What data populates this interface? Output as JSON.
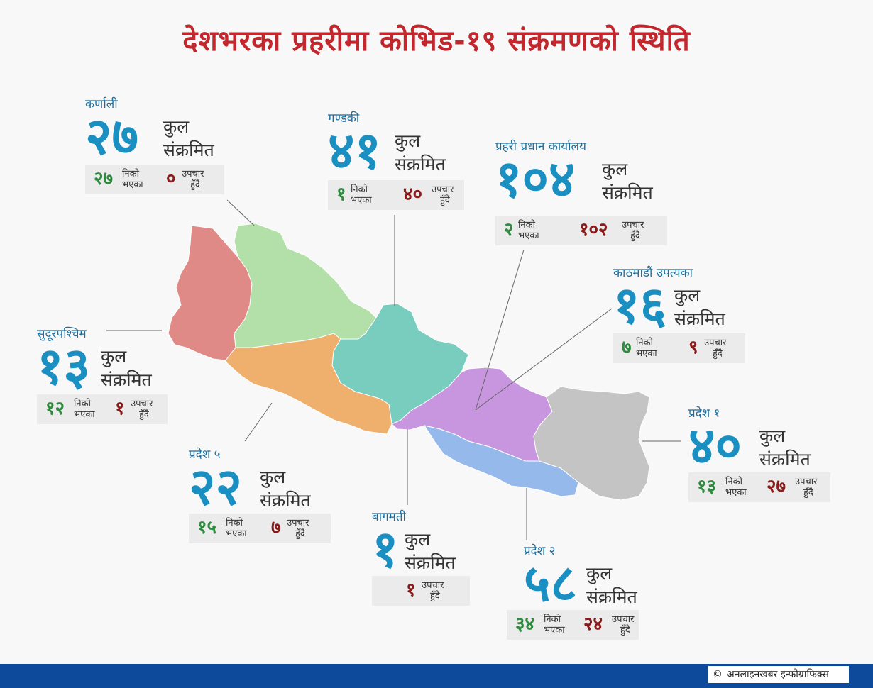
{
  "title": "देशभरका प्रहरीमा कोभिड-१९ संक्रमणको स्थिति",
  "total_word": "कुल",
  "infected_word": "संक्रमित",
  "recovered_line1": "निको",
  "recovered_line2": "भएका",
  "treatment_line1": "उपचार",
  "treatment_line2": "हुँदै",
  "regions": [
    {
      "key": "karnali",
      "name": "कर्णाली",
      "total": "२७",
      "recovered": "२७",
      "treatment": "०",
      "color": "#b3dfa8"
    },
    {
      "key": "gandaki",
      "name": "गण्डकी",
      "total": "४१",
      "recovered": "१",
      "treatment": "४०",
      "color": "#78cdbf"
    },
    {
      "key": "hq",
      "name": "प्रहरी प्रधान कार्यालय",
      "total": "१०४",
      "recovered": "२",
      "treatment": "१०२",
      "color": ""
    },
    {
      "key": "kathmandu",
      "name": "काठमाडौं उपत्यका",
      "total": "१६",
      "recovered": "७",
      "treatment": "९",
      "color": ""
    },
    {
      "key": "sudurpaschim",
      "name": "सुदूरपश्चिम",
      "total": "१३",
      "recovered": "१२",
      "treatment": "१",
      "color": "#e08a87"
    },
    {
      "key": "pradesh1",
      "name": "प्रदेश १",
      "total": "४०",
      "recovered": "१३",
      "treatment": "२७",
      "color": "#c4c4c4"
    },
    {
      "key": "pradesh5",
      "name": "प्रदेश ५",
      "total": "२२",
      "recovered": "१५",
      "treatment": "७",
      "color": "#eeb06c"
    },
    {
      "key": "bagmati",
      "name": "बागमती",
      "total": "१",
      "recovered": "",
      "treatment": "१",
      "color": "#c896df"
    },
    {
      "key": "pradesh2",
      "name": "प्रदेश २",
      "total": "५८",
      "recovered": "३४",
      "treatment": "२४",
      "color": "#94b9ea"
    }
  ],
  "colors": {
    "title": "#c1272d",
    "accent": "#1a8fc2",
    "recovered": "#2e8b3e",
    "treatment": "#8b1a1a",
    "footer": "#0d4a9b"
  },
  "credit": {
    "symbol": "©",
    "text": "अनलाइनखबर इन्फोग्राफिक्स"
  }
}
